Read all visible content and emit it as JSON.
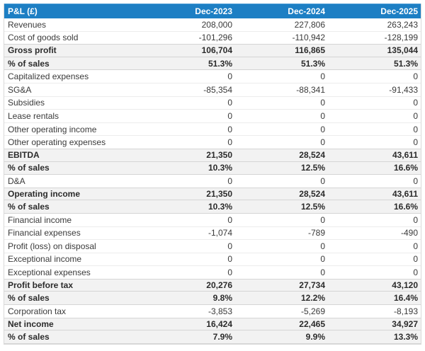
{
  "table": {
    "title_column": "P&L (£)",
    "columns": [
      "P&L (£)",
      "Dec-2023",
      "Dec-2024",
      "Dec-2025"
    ],
    "rows": [
      {
        "label": "Revenues",
        "values": [
          "208,000",
          "227,806",
          "263,243"
        ],
        "emphasis": false
      },
      {
        "label": "Cost of goods sold",
        "values": [
          "-101,296",
          "-110,942",
          "-128,199"
        ],
        "emphasis": false
      },
      {
        "label": "Gross profit",
        "values": [
          "106,704",
          "116,865",
          "135,044"
        ],
        "emphasis": true
      },
      {
        "label": "% of sales",
        "values": [
          "51.3%",
          "51.3%",
          "51.3%"
        ],
        "emphasis": true
      },
      {
        "label": "Capitalized expenses",
        "values": [
          "0",
          "0",
          "0"
        ],
        "emphasis": false
      },
      {
        "label": "SG&A",
        "values": [
          "-85,354",
          "-88,341",
          "-91,433"
        ],
        "emphasis": false
      },
      {
        "label": "Subsidies",
        "values": [
          "0",
          "0",
          "0"
        ],
        "emphasis": false
      },
      {
        "label": "Lease rentals",
        "values": [
          "0",
          "0",
          "0"
        ],
        "emphasis": false
      },
      {
        "label": "Other operating income",
        "values": [
          "0",
          "0",
          "0"
        ],
        "emphasis": false
      },
      {
        "label": "Other operating expenses",
        "values": [
          "0",
          "0",
          "0"
        ],
        "emphasis": false
      },
      {
        "label": "EBITDA",
        "values": [
          "21,350",
          "28,524",
          "43,611"
        ],
        "emphasis": true
      },
      {
        "label": "% of sales",
        "values": [
          "10.3%",
          "12.5%",
          "16.6%"
        ],
        "emphasis": true
      },
      {
        "label": "D&A",
        "values": [
          "0",
          "0",
          "0"
        ],
        "emphasis": false
      },
      {
        "label": "Operating income",
        "values": [
          "21,350",
          "28,524",
          "43,611"
        ],
        "emphasis": true
      },
      {
        "label": "% of sales",
        "values": [
          "10.3%",
          "12.5%",
          "16.6%"
        ],
        "emphasis": true
      },
      {
        "label": "Financial income",
        "values": [
          "0",
          "0",
          "0"
        ],
        "emphasis": false
      },
      {
        "label": "Financial expenses",
        "values": [
          "-1,074",
          "-789",
          "-490"
        ],
        "emphasis": false
      },
      {
        "label": "Profit (loss) on disposal",
        "values": [
          "0",
          "0",
          "0"
        ],
        "emphasis": false
      },
      {
        "label": "Exceptional income",
        "values": [
          "0",
          "0",
          "0"
        ],
        "emphasis": false
      },
      {
        "label": "Exceptional expenses",
        "values": [
          "0",
          "0",
          "0"
        ],
        "emphasis": false
      },
      {
        "label": "Profit before tax",
        "values": [
          "20,276",
          "27,734",
          "43,120"
        ],
        "emphasis": true
      },
      {
        "label": "% of sales",
        "values": [
          "9.8%",
          "12.2%",
          "16.4%"
        ],
        "emphasis": true
      },
      {
        "label": "Corporation tax",
        "values": [
          "-3,853",
          "-5,269",
          "-8,193"
        ],
        "emphasis": false
      },
      {
        "label": "Net income",
        "values": [
          "16,424",
          "22,465",
          "34,927"
        ],
        "emphasis": true
      },
      {
        "label": "% of sales",
        "values": [
          "7.9%",
          "9.9%",
          "13.3%"
        ],
        "emphasis": true
      }
    ]
  },
  "colors": {
    "header_bg": "#1d7fc4",
    "header_text": "#ffffff",
    "emphasis_row_bg": "#f2f2f2",
    "row_border": "#ececec",
    "emphasis_border": "#d5d5d5",
    "table_border": "#d9d9d9",
    "text": "#3a3a3a"
  }
}
